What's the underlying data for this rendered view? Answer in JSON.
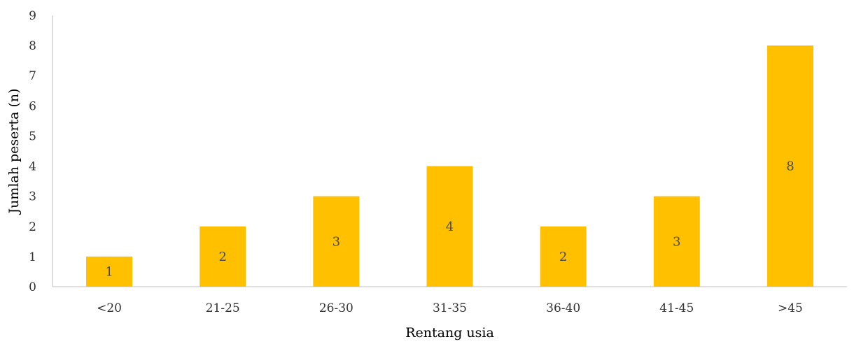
{
  "chart_data": {
    "type": "bar",
    "title": "",
    "xlabel": "Rentang usia",
    "ylabel": "Jumlah peserta (n)",
    "categories": [
      "<20",
      "21-25",
      "26-30",
      "31-35",
      "36-40",
      "41-45",
      ">45"
    ],
    "values": [
      1,
      2,
      3,
      4,
      2,
      3,
      8
    ],
    "data_labels": [
      "1",
      "2",
      "3",
      "4",
      "2",
      "3",
      "8"
    ],
    "ylim": [
      0,
      9
    ],
    "yticks": [
      "0",
      "1",
      "2",
      "3",
      "4",
      "5",
      "6",
      "7",
      "8",
      "9"
    ],
    "grid": false,
    "legend": "none",
    "colors": {
      "bar": "#FFC000",
      "axis": "#BFBFBF",
      "data_label": "#4A4A4A"
    }
  }
}
